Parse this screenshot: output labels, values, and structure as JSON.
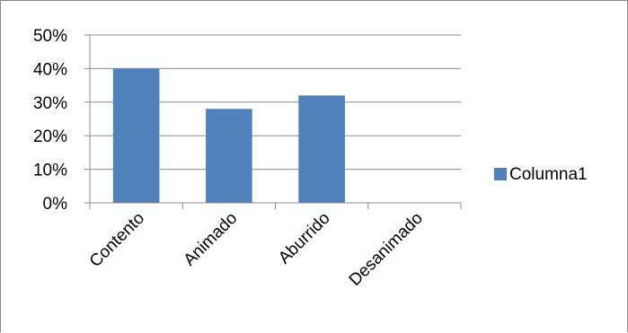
{
  "chart_data": {
    "type": "bar",
    "categories": [
      "Contento",
      "Animado",
      "Aburrido",
      "Desanimado"
    ],
    "series": [
      {
        "name": "Columna1",
        "values": [
          0.4,
          0.28,
          0.32,
          0
        ],
        "color": "#4F81BD"
      }
    ],
    "y_ticks": [
      "0%",
      "10%",
      "20%",
      "30%",
      "40%",
      "50%"
    ],
    "ylim": [
      0,
      0.5
    ],
    "grid": true,
    "legend_position": "right",
    "title": "",
    "xlabel": "",
    "ylabel": ""
  }
}
